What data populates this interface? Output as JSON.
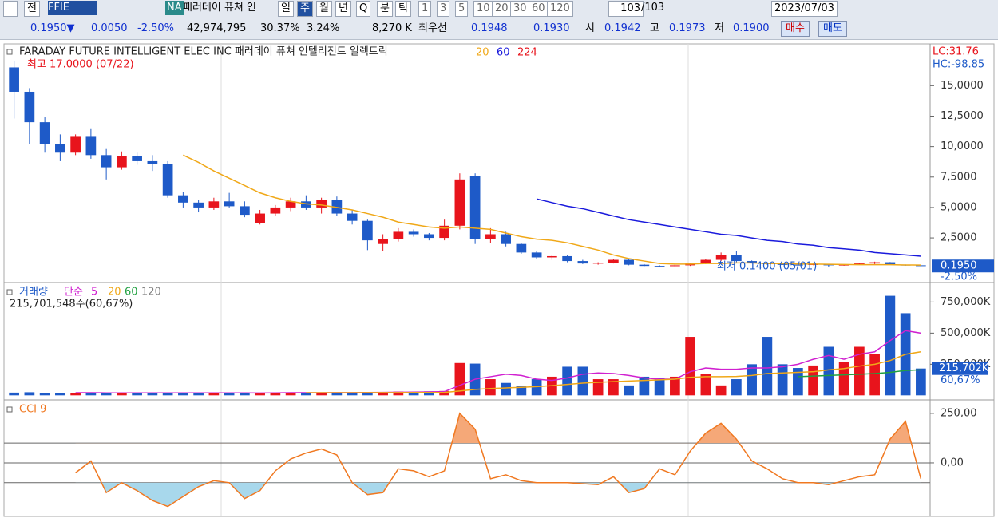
{
  "toolbar": {
    "items": [
      "전",
      "FFIE",
      "NA",
      "패러데이 퓨쳐 인",
      "일",
      "주",
      "월",
      "년",
      "Q",
      "분",
      "틱",
      "1",
      "3",
      "5",
      "10",
      "20",
      "30",
      "60",
      "120",
      "103",
      "/103",
      "2023/07/03"
    ]
  },
  "infobar": {
    "items": [
      "0.1950▼",
      "0.0050",
      "-2.50%",
      "42,974,795",
      "30.37%",
      "3.24%",
      "8,270 K",
      "최우선",
      "0.1948",
      "0.1930",
      "시",
      "0.1942",
      "고",
      "0.1973",
      "저",
      "0.1900",
      "매수",
      "매도"
    ]
  },
  "chart_data": [
    {
      "type": "candlestick",
      "title": "FARADAY FUTURE INTELLIGENT ELEC INC  패러데이 퓨쳐 인텔리전트 일렉트릭",
      "open": [
        16.5,
        14.5,
        12.0,
        10.2,
        9.5,
        10.8,
        9.3,
        8.3,
        9.2,
        8.8,
        8.6,
        6.0,
        5.4,
        5.0,
        5.5,
        5.1,
        3.7,
        4.5,
        5.0,
        5.5,
        5.0,
        5.6,
        4.5,
        3.9,
        2.0,
        2.4,
        3.0,
        2.8,
        2.5,
        3.5,
        7.6,
        2.4,
        2.8,
        2.0,
        1.3,
        0.9,
        1.0,
        0.6,
        0.4,
        0.45,
        0.7,
        0.3,
        0.2,
        0.18,
        0.25,
        0.4,
        0.7,
        1.1,
        0.6,
        0.45,
        0.35,
        0.3,
        0.28,
        0.35,
        0.25,
        0.3,
        0.4,
        0.5,
        0.3,
        0.25
      ],
      "high": [
        17,
        14.8,
        12.4,
        11.0,
        11.0,
        11.5,
        9.8,
        9.6,
        9.5,
        9.3,
        8.8,
        6.3,
        5.6,
        5.8,
        6.2,
        5.5,
        4.8,
        5.2,
        5.8,
        6.0,
        5.8,
        5.9,
        4.8,
        4.0,
        2.8,
        3.3,
        3.2,
        2.9,
        4.0,
        7.8,
        7.8,
        3.3,
        3.0,
        2.1,
        1.4,
        1.1,
        1.1,
        0.7,
        0.5,
        0.8,
        0.75,
        0.35,
        0.25,
        0.3,
        0.45,
        0.8,
        1.3,
        1.4,
        0.65,
        0.5,
        0.4,
        0.35,
        0.4,
        0.36,
        0.32,
        0.45,
        0.55,
        0.52,
        0.32,
        0.26
      ],
      "low": [
        12.3,
        10.2,
        9.5,
        8.8,
        9.3,
        9.0,
        7.3,
        8.1,
        8.5,
        8.0,
        5.8,
        5.0,
        4.6,
        4.8,
        5.0,
        4.2,
        3.6,
        4.3,
        4.7,
        4.8,
        4.5,
        4.3,
        3.6,
        1.5,
        1.4,
        2.2,
        2.6,
        2.3,
        2.3,
        3.2,
        2.0,
        2.1,
        1.8,
        1.2,
        0.8,
        0.7,
        0.5,
        0.35,
        0.3,
        0.4,
        0.25,
        0.18,
        0.15,
        0.16,
        0.2,
        0.35,
        0.6,
        0.5,
        0.4,
        0.3,
        0.28,
        0.25,
        0.26,
        0.14,
        0.22,
        0.28,
        0.35,
        0.28,
        0.22,
        0.19
      ],
      "close": [
        14.5,
        12.0,
        10.2,
        9.5,
        10.8,
        9.3,
        8.3,
        9.2,
        8.8,
        8.6,
        6.0,
        5.4,
        5.0,
        5.5,
        5.1,
        4.4,
        4.5,
        5.0,
        5.5,
        5.0,
        5.6,
        4.5,
        3.9,
        2.3,
        2.4,
        3.0,
        2.8,
        2.5,
        3.5,
        7.3,
        2.4,
        2.8,
        2.0,
        1.3,
        0.9,
        1.0,
        0.6,
        0.4,
        0.45,
        0.7,
        0.3,
        0.2,
        0.18,
        0.25,
        0.4,
        0.7,
        1.1,
        0.6,
        0.45,
        0.35,
        0.3,
        0.28,
        0.35,
        0.25,
        0.3,
        0.4,
        0.5,
        0.3,
        0.25,
        0.195
      ],
      "colors": {
        "up": "#e8141c",
        "down": "#1e5ac8"
      },
      "series": [
        {
          "name": "20",
          "color": "#f0a818",
          "values": [
            null,
            null,
            null,
            null,
            null,
            null,
            null,
            null,
            null,
            null,
            null,
            9.3,
            8.7,
            8.0,
            7.4,
            6.8,
            6.2,
            5.8,
            5.5,
            5.3,
            5.2,
            5.0,
            4.8,
            4.5,
            4.2,
            3.8,
            3.6,
            3.4,
            3.3,
            3.4,
            3.3,
            3.2,
            2.9,
            2.6,
            2.4,
            2.3,
            2.1,
            1.8,
            1.5,
            1.1,
            0.8,
            0.6,
            0.4,
            0.35,
            0.35,
            0.4,
            0.4,
            0.45,
            0.45,
            0.4,
            0.38,
            0.36,
            0.35,
            0.33,
            0.32,
            0.3,
            0.3,
            0.3,
            0.28,
            0.27
          ]
        },
        {
          "name": "60",
          "color": "#1a1adc",
          "values": [
            null,
            null,
            null,
            null,
            null,
            null,
            null,
            null,
            null,
            null,
            null,
            null,
            null,
            null,
            null,
            null,
            null,
            null,
            null,
            null,
            null,
            null,
            null,
            null,
            null,
            null,
            null,
            null,
            null,
            null,
            null,
            null,
            null,
            null,
            5.7,
            5.4,
            5.1,
            4.9,
            4.6,
            4.3,
            4.0,
            3.8,
            3.6,
            3.4,
            3.2,
            3.0,
            2.8,
            2.7,
            2.5,
            2.3,
            2.2,
            2.0,
            1.9,
            1.7,
            1.6,
            1.5,
            1.3,
            1.2,
            1.1,
            1.0
          ]
        },
        {
          "name": "224",
          "color": "#e8141c",
          "values": [
            null,
            null,
            null,
            null,
            null,
            null,
            null,
            null,
            null,
            null,
            null,
            null,
            null,
            null,
            null,
            null,
            null,
            null,
            null,
            null,
            null,
            null,
            null,
            null,
            null,
            null,
            null,
            null,
            null,
            null,
            null,
            null,
            null,
            null,
            null,
            null,
            null,
            null,
            null,
            null,
            null,
            null,
            null,
            null,
            null,
            null,
            null,
            null,
            null,
            null,
            null,
            null,
            null,
            null,
            null,
            null,
            null,
            null,
            null,
            null
          ]
        }
      ],
      "max_label": "최고 17.0000 (07/22)",
      "min_label": "최저 0.1400 (05/01)",
      "lc": "LC:31.76",
      "hc": "HC:-98.85",
      "last_price": {
        "value": 0.195,
        "label": "0.1950"
      },
      "change_label": "-2.50%",
      "ylim": [
        -1.1,
        18.3
      ],
      "yticks": [
        {
          "value": 15,
          "label": "15,0000"
        },
        {
          "value": 12.5,
          "label": "12,5000"
        },
        {
          "value": 10,
          "label": "10,0000"
        },
        {
          "value": 7.5,
          "label": "7,5000"
        },
        {
          "value": 5,
          "label": "5,0000"
        },
        {
          "value": 2.5,
          "label": "2,5000"
        }
      ]
    },
    {
      "type": "bar",
      "title": "거래량",
      "subtitle": "단순",
      "note": "215,701,548주(60,67%)",
      "values": [
        22000,
        25000,
        20000,
        18000,
        21000,
        19000,
        24000,
        20000,
        18000,
        17000,
        23000,
        20000,
        19000,
        18000,
        20000,
        21000,
        19000,
        22000,
        24000,
        20000,
        21000,
        23000,
        22000,
        26000,
        25000,
        30000,
        28000,
        32000,
        35000,
        260000,
        255000,
        130000,
        100000,
        75000,
        130000,
        150000,
        230000,
        230000,
        130000,
        130000,
        80000,
        150000,
        140000,
        150000,
        470000,
        170000,
        80000,
        130000,
        250000,
        470000,
        250000,
        220000,
        240000,
        390000,
        270000,
        390000,
        330000,
        800000,
        660000,
        215702
      ],
      "series": [
        {
          "name": "5",
          "color": "#d020d0",
          "values": [
            null,
            null,
            null,
            null,
            21000,
            21000,
            20000,
            20000,
            20000,
            20000,
            20000,
            20000,
            20000,
            20000,
            20000,
            20000,
            19000,
            20000,
            21000,
            21000,
            21000,
            22000,
            22000,
            23000,
            24000,
            25000,
            26000,
            28000,
            30000,
            80000,
            130000,
            150000,
            170000,
            160000,
            130000,
            120000,
            140000,
            170000,
            180000,
            175000,
            160000,
            140000,
            130000,
            130000,
            190000,
            220000,
            210000,
            210000,
            220000,
            220000,
            230000,
            250000,
            290000,
            320000,
            290000,
            330000,
            350000,
            440000,
            520000,
            500000
          ]
        },
        {
          "name": "20",
          "color": "#f0a818",
          "values": [
            null,
            null,
            null,
            null,
            null,
            null,
            null,
            null,
            null,
            null,
            null,
            null,
            null,
            null,
            null,
            null,
            null,
            null,
            null,
            21000,
            21000,
            21000,
            21000,
            22000,
            22000,
            22000,
            23000,
            23000,
            24000,
            35000,
            48000,
            55000,
            60000,
            65000,
            70000,
            78000,
            88000,
            98000,
            105000,
            110000,
            115000,
            120000,
            125000,
            130000,
            145000,
            150000,
            150000,
            152000,
            160000,
            175000,
            180000,
            185000,
            190000,
            205000,
            215000,
            235000,
            250000,
            280000,
            330000,
            350000
          ]
        },
        {
          "name": "60",
          "color": "#20a040",
          "values": [
            null,
            null,
            null,
            null,
            null,
            null,
            null,
            null,
            null,
            null,
            null,
            null,
            null,
            null,
            null,
            null,
            null,
            null,
            null,
            null,
            null,
            null,
            null,
            null,
            null,
            null,
            null,
            null,
            null,
            null,
            null,
            null,
            null,
            null,
            null,
            null,
            null,
            null,
            null,
            null,
            null,
            null,
            null,
            null,
            null,
            null,
            null,
            null,
            null,
            null,
            null,
            150000,
            155000,
            160000,
            165000,
            170000,
            175000,
            185000,
            200000,
            205000
          ]
        },
        {
          "name": "120",
          "color": "#808080",
          "values": [
            null,
            null,
            null,
            null,
            null,
            null,
            null,
            null,
            null,
            null,
            null,
            null,
            null,
            null,
            null,
            null,
            null,
            null,
            null,
            null,
            null,
            null,
            null,
            null,
            null,
            null,
            null,
            null,
            null,
            null,
            null,
            null,
            null,
            null,
            null,
            null,
            null,
            null,
            null,
            null,
            null,
            null,
            null,
            null,
            null,
            null,
            null,
            null,
            null,
            null,
            null,
            null,
            null,
            null,
            null,
            null,
            null,
            null,
            null,
            null
          ]
        }
      ],
      "last_label": {
        "value": 215702,
        "label": "215,702K"
      },
      "ratio_label": "60,67%",
      "ylim": [
        -30000,
        900000
      ],
      "yticks": [
        {
          "value": 750000,
          "label": "750,000K"
        },
        {
          "value": 500000,
          "label": "500,000K"
        },
        {
          "value": 250000,
          "label": "250,000K"
        }
      ]
    },
    {
      "type": "line",
      "series": [
        {
          "name": "CCI 9",
          "color": "#f07820",
          "values": [
            null,
            null,
            null,
            null,
            -50,
            10,
            -150,
            -100,
            -140,
            -190,
            -220,
            -170,
            -120,
            -90,
            -100,
            -180,
            -140,
            -40,
            20,
            50,
            70,
            40,
            -100,
            -160,
            -150,
            -30,
            -40,
            -70,
            -40,
            250,
            170,
            -80,
            -60,
            -90,
            -100,
            -100,
            -100,
            -105,
            -110,
            -70,
            -150,
            -130,
            -30,
            -60,
            60,
            150,
            200,
            120,
            10,
            -30,
            -80,
            -100,
            -100,
            -110,
            -90,
            -70,
            -60,
            120,
            210,
            -80
          ]
        }
      ],
      "reference_lines": [
        100,
        -100
      ],
      "ylim": [
        -262,
        310
      ],
      "yticks": [
        {
          "value": 250,
          "label": "250,00"
        },
        {
          "value": 0,
          "label": "0,00"
        }
      ]
    }
  ]
}
